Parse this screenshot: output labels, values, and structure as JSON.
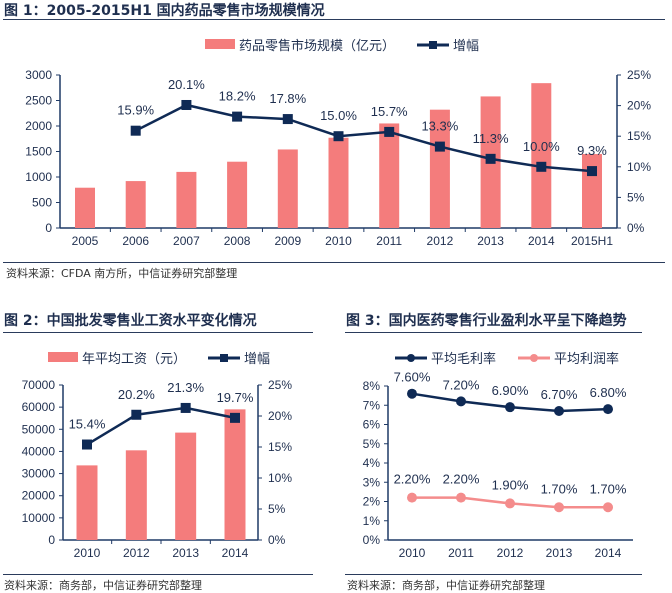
{
  "chart_data": [
    {
      "type": "bar+line",
      "title": "图 1：2005-2015H1 国内药品零售市场规模情况",
      "categories": [
        "2005",
        "2006",
        "2007",
        "2008",
        "2009",
        "2010",
        "2011",
        "2012",
        "2013",
        "2014",
        "2015H1"
      ],
      "series": [
        {
          "name": "药品零售市场规模（亿元）",
          "type": "bar",
          "axis": "left",
          "color": "#f47c7c",
          "values": [
            790,
            920,
            1100,
            1300,
            1540,
            1770,
            2050,
            2320,
            2580,
            2840,
            1450
          ]
        },
        {
          "name": "增幅",
          "type": "line",
          "axis": "right",
          "color": "#0f2a55",
          "values": [
            null,
            15.9,
            20.1,
            18.2,
            17.8,
            15.0,
            15.7,
            13.3,
            11.3,
            10.0,
            9.3
          ],
          "labels": [
            "",
            "15.9%",
            "20.1%",
            "18.2%",
            "17.8%",
            "15.0%",
            "15.7%",
            "13.3%",
            "11.3%",
            "10.0%",
            "9.3%"
          ]
        }
      ],
      "left_ticks": [
        "0",
        "500",
        "1000",
        "1500",
        "2000",
        "2500",
        "3000"
      ],
      "ylim": [
        0,
        3000
      ],
      "right_ticks": [
        "0%",
        "5%",
        "10%",
        "15%",
        "20%",
        "25%"
      ],
      "y2lim": [
        0,
        25
      ],
      "legend": "top",
      "source": "资料来源：CFDA 南方所，中信证券研究部整理"
    },
    {
      "type": "bar+line",
      "title": "图 2：中国批发零售业工资水平变化情况",
      "categories": [
        "2010",
        "2012",
        "2013",
        "2014"
      ],
      "series": [
        {
          "name": "年平均工资（元）",
          "type": "bar",
          "axis": "left",
          "color": "#f47c7c",
          "values": [
            33700,
            40500,
            48500,
            59000
          ]
        },
        {
          "name": "增幅",
          "type": "line",
          "axis": "right",
          "color": "#0f2a55",
          "values": [
            15.4,
            20.2,
            21.3,
            19.7
          ],
          "labels": [
            "15.4%",
            "20.2%",
            "21.3%",
            "19.7%"
          ]
        }
      ],
      "left_ticks": [
        "0",
        "10000",
        "20000",
        "30000",
        "40000",
        "50000",
        "60000",
        "70000"
      ],
      "ylim": [
        0,
        70000
      ],
      "right_ticks": [
        "0%",
        "5%",
        "10%",
        "15%",
        "20%",
        "25%"
      ],
      "y2lim": [
        0,
        25
      ],
      "legend": "top",
      "source": "资料来源：商务部，中信证券研究部整理"
    },
    {
      "type": "line",
      "title": "图 3：国内医药零售行业盈利水平呈下降趋势",
      "categories": [
        "2010",
        "2011",
        "2012",
        "2013",
        "2014"
      ],
      "series": [
        {
          "name": "平均毛利率",
          "type": "line",
          "axis": "left",
          "color": "#0f2a55",
          "values": [
            7.6,
            7.2,
            6.9,
            6.7,
            6.8
          ],
          "labels": [
            "7.60%",
            "7.20%",
            "6.90%",
            "6.70%",
            "6.80%"
          ]
        },
        {
          "name": "平均利润率",
          "type": "line",
          "axis": "left",
          "color": "#f48c8c",
          "values": [
            2.2,
            2.2,
            1.9,
            1.7,
            1.7
          ],
          "labels": [
            "2.20%",
            "2.20%",
            "1.90%",
            "1.70%",
            "1.70%"
          ]
        }
      ],
      "left_ticks": [
        "0%",
        "1%",
        "2%",
        "3%",
        "4%",
        "5%",
        "6%",
        "7%",
        "8%"
      ],
      "ylim": [
        0,
        8
      ],
      "legend": "top",
      "source": "资料来源：商务部，中信证券研究部整理"
    }
  ]
}
